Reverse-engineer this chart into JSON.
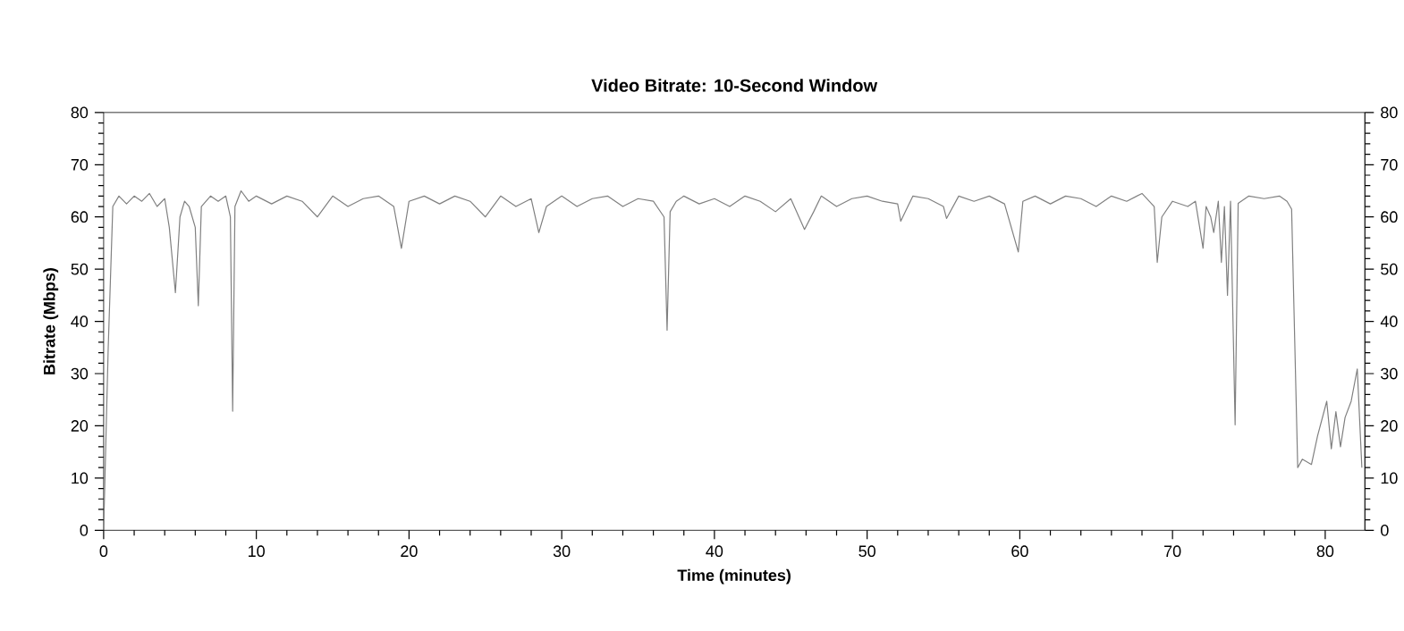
{
  "chart_data": {
    "type": "line",
    "title": "Video Bitrate: 10-Second Window",
    "xlabel": "Time (minutes)",
    "ylabel": "Bitrate (Mbps)",
    "xlim": [
      0,
      82.6
    ],
    "xticks": [
      0,
      10,
      20,
      30,
      40,
      50,
      60,
      70,
      80
    ],
    "ylim": [
      0,
      80
    ],
    "yticks": [
      0,
      10,
      20,
      30,
      40,
      50,
      60,
      70,
      80
    ],
    "y2lim": [
      0,
      80
    ],
    "y2ticks": [
      0,
      10,
      20,
      30,
      40,
      50,
      60,
      70,
      80
    ],
    "series": [
      {
        "color": "#808080",
        "x": [
          0,
          0.3,
          0.6,
          1,
          1.5,
          2,
          2.5,
          3,
          3.5,
          4,
          4.3,
          4.7,
          5,
          5.3,
          5.6,
          6,
          6.2,
          6.4,
          7,
          7.5,
          8,
          8.3,
          8.45,
          8.6,
          9,
          9.5,
          10,
          11,
          12,
          13,
          14,
          15,
          16,
          17,
          18,
          19,
          19.5,
          20,
          21,
          22,
          23,
          24,
          25,
          26,
          27,
          28,
          28.5,
          29,
          30,
          31,
          32,
          33,
          34,
          35,
          36,
          36.7,
          36.9,
          37.1,
          37.5,
          38,
          39,
          40,
          41,
          42,
          43,
          44,
          45,
          45.9,
          46.5,
          47,
          48,
          49,
          50,
          51,
          52,
          52.2,
          53,
          54,
          55,
          55.2,
          56,
          57,
          58,
          59,
          59.9,
          60.2,
          61,
          62,
          63,
          64,
          65,
          66,
          67,
          68,
          68.8,
          69,
          69.3,
          70,
          71,
          71.5,
          72,
          72.2,
          72.5,
          72.7,
          73,
          73.2,
          73.4,
          73.6,
          73.8,
          74.1,
          74.3,
          75,
          76,
          77,
          77.5,
          77.8,
          78.2,
          78.5,
          79.1,
          79.5,
          80.1,
          80.4,
          80.7,
          81,
          81.3,
          81.7,
          82.1,
          82.4
        ],
        "values": [
          0,
          35,
          62,
          64,
          62.5,
          64,
          63,
          64.5,
          62,
          63.5,
          58,
          45.5,
          60,
          63,
          62,
          58,
          43,
          62,
          64,
          63,
          64,
          60,
          22.8,
          62,
          65,
          63,
          64,
          62.5,
          64,
          63,
          60,
          64,
          62,
          63.5,
          64,
          62,
          54,
          63,
          64,
          62.5,
          64,
          63,
          60,
          64,
          62,
          63.5,
          57,
          62,
          64,
          62,
          63.5,
          64,
          62,
          63.5,
          63,
          60,
          38.3,
          61,
          63,
          64,
          62.5,
          63.5,
          62,
          64,
          63,
          61,
          63.5,
          57.6,
          61,
          64,
          62,
          63.5,
          64,
          63,
          62.5,
          59.2,
          64,
          63.5,
          62,
          59.7,
          64,
          63,
          64,
          62.5,
          53.3,
          63,
          64,
          62.5,
          64,
          63.5,
          62,
          64,
          63,
          64.5,
          62,
          51.3,
          60,
          63,
          62,
          63,
          54,
          62,
          60,
          57,
          63,
          51.3,
          62,
          45,
          63,
          20.2,
          62.6,
          64,
          63.5,
          64,
          63,
          61.5,
          12,
          13.6,
          12.6,
          18.1,
          24.7,
          15.6,
          22.7,
          16,
          21.6,
          24.7,
          30.9,
          12
        ]
      }
    ]
  }
}
